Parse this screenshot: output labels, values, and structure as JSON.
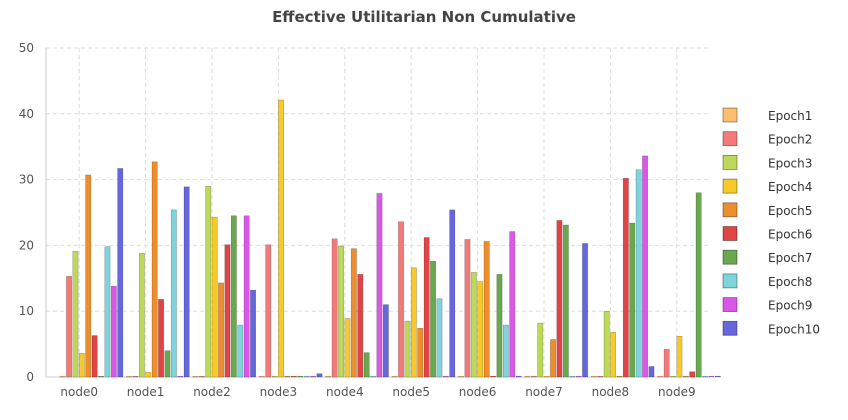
{
  "chart_data": {
    "type": "bar",
    "title": "Effective Utilitarian Non Cumulative",
    "xlabel": "",
    "ylabel": "",
    "ylim": [
      0,
      50
    ],
    "yticks": [
      0,
      10,
      20,
      30,
      40,
      50
    ],
    "grid": true,
    "legend_position": "right",
    "categories": [
      "node0",
      "node1",
      "node2",
      "node3",
      "node4",
      "node5",
      "node6",
      "node7",
      "node8",
      "node9"
    ],
    "series": [
      {
        "name": "Epoch1",
        "color": "#fdbf6f",
        "values": [
          0,
          0,
          0,
          0,
          0,
          0,
          0,
          0,
          0,
          0
        ]
      },
      {
        "name": "Epoch2",
        "color": "#f47a7a",
        "values": [
          15.3,
          0,
          0,
          20.1,
          21.0,
          23.6,
          20.9,
          0,
          0,
          4.2
        ]
      },
      {
        "name": "Epoch3",
        "color": "#bcd95a",
        "values": [
          19.1,
          18.8,
          29.0,
          0,
          19.9,
          8.5,
          15.9,
          8.2,
          10.0,
          0
        ]
      },
      {
        "name": "Epoch4",
        "color": "#f8c92b",
        "values": [
          3.6,
          0.7,
          24.3,
          42.1,
          8.9,
          16.6,
          14.5,
          0,
          6.8,
          6.2
        ]
      },
      {
        "name": "Epoch5",
        "color": "#ee8d2b",
        "values": [
          30.7,
          32.7,
          14.3,
          0,
          19.5,
          7.4,
          20.6,
          5.7,
          0,
          0
        ]
      },
      {
        "name": "Epoch6",
        "color": "#e04444",
        "values": [
          6.3,
          11.8,
          20.1,
          0,
          15.6,
          21.2,
          0,
          23.8,
          30.2,
          0.8
        ]
      },
      {
        "name": "Epoch7",
        "color": "#6aa84f",
        "values": [
          0,
          4.0,
          24.5,
          0,
          3.7,
          17.6,
          15.6,
          23.1,
          23.4,
          28.0
        ]
      },
      {
        "name": "Epoch8",
        "color": "#7fd3dc",
        "values": [
          19.8,
          25.4,
          7.9,
          0,
          0,
          11.9,
          7.9,
          0,
          31.5,
          0
        ]
      },
      {
        "name": "Epoch9",
        "color": "#da58e8",
        "values": [
          13.8,
          0,
          24.5,
          0,
          27.9,
          0,
          22.1,
          0,
          33.6,
          0
        ]
      },
      {
        "name": "Epoch10",
        "color": "#6666dd",
        "values": [
          31.7,
          28.9,
          13.2,
          0.5,
          11.0,
          25.4,
          0,
          20.3,
          1.6,
          0
        ]
      }
    ]
  }
}
